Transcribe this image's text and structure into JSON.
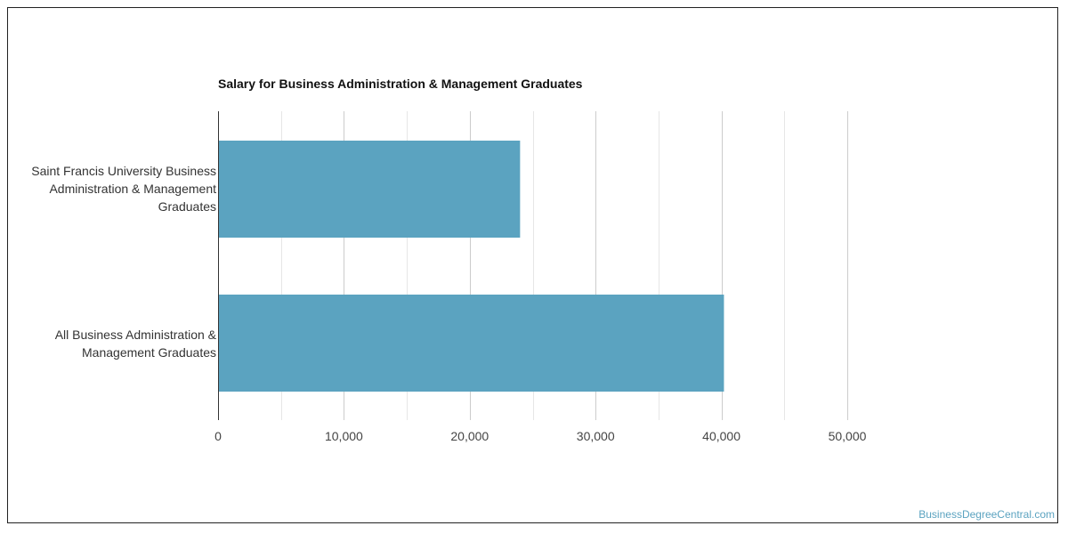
{
  "chart_data": {
    "type": "bar",
    "orientation": "horizontal",
    "title": "Salary for Business Administration & Management Graduates",
    "categories": [
      "Saint Francis University Business Administration & Management Graduates",
      "All Business Administration & Management Graduates"
    ],
    "values": [
      24000,
      40200
    ],
    "xlim": [
      0,
      50000
    ],
    "x_ticks": [
      "0",
      "10,000",
      "20,000",
      "30,000",
      "40,000",
      "50,000"
    ],
    "grid": true,
    "bar_color": "#5ba3c0"
  },
  "credit": "BusinessDegreeCentral.com"
}
